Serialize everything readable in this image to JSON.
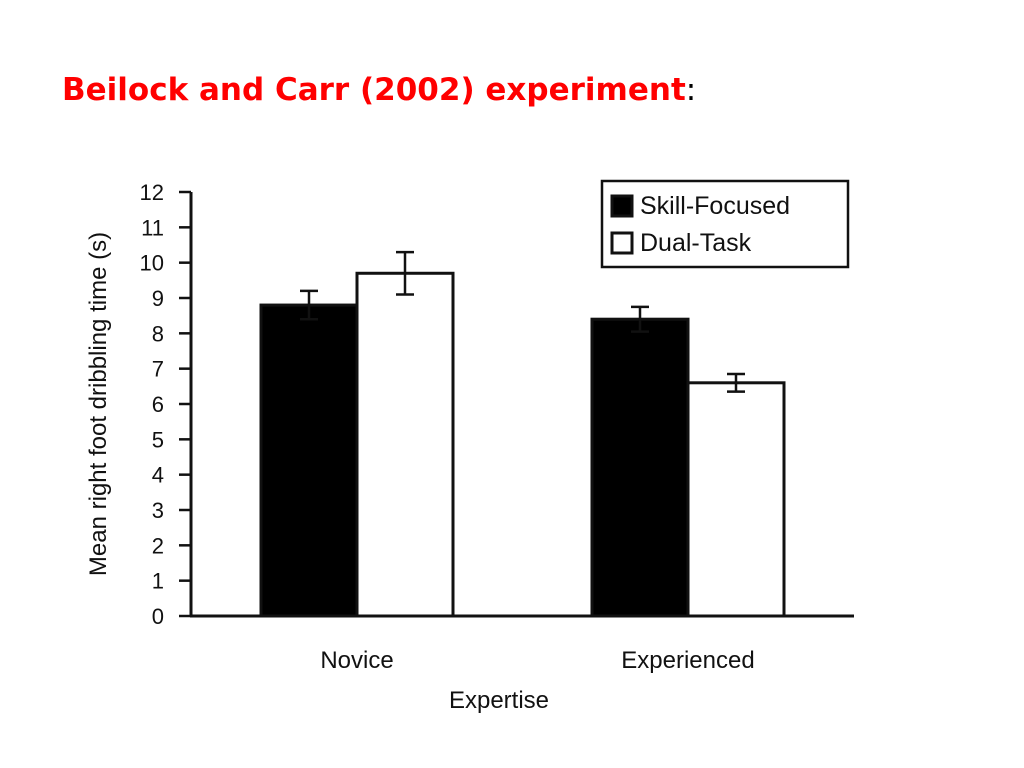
{
  "slide": {
    "title": "Beilock and Carr (2002) experiment",
    "title_suffix": ":"
  },
  "chart_data": {
    "type": "bar",
    "categories": [
      "Novice",
      "Experienced"
    ],
    "series": [
      {
        "name": "Skill-Focused",
        "values": [
          8.8,
          8.4
        ],
        "error": [
          0.4,
          0.35
        ],
        "fill": "#000000"
      },
      {
        "name": "Dual-Task",
        "values": [
          9.7,
          6.6
        ],
        "error": [
          0.6,
          0.25
        ],
        "fill": "#ffffff"
      }
    ],
    "xlabel": "Expertise",
    "ylabel": "Mean right foot dribbling time (s)",
    "ylim": [
      0,
      12
    ],
    "yticks": [
      0,
      1,
      2,
      3,
      4,
      5,
      6,
      7,
      8,
      9,
      10,
      11,
      12
    ],
    "legend_position": "top-right",
    "grid": false
  }
}
